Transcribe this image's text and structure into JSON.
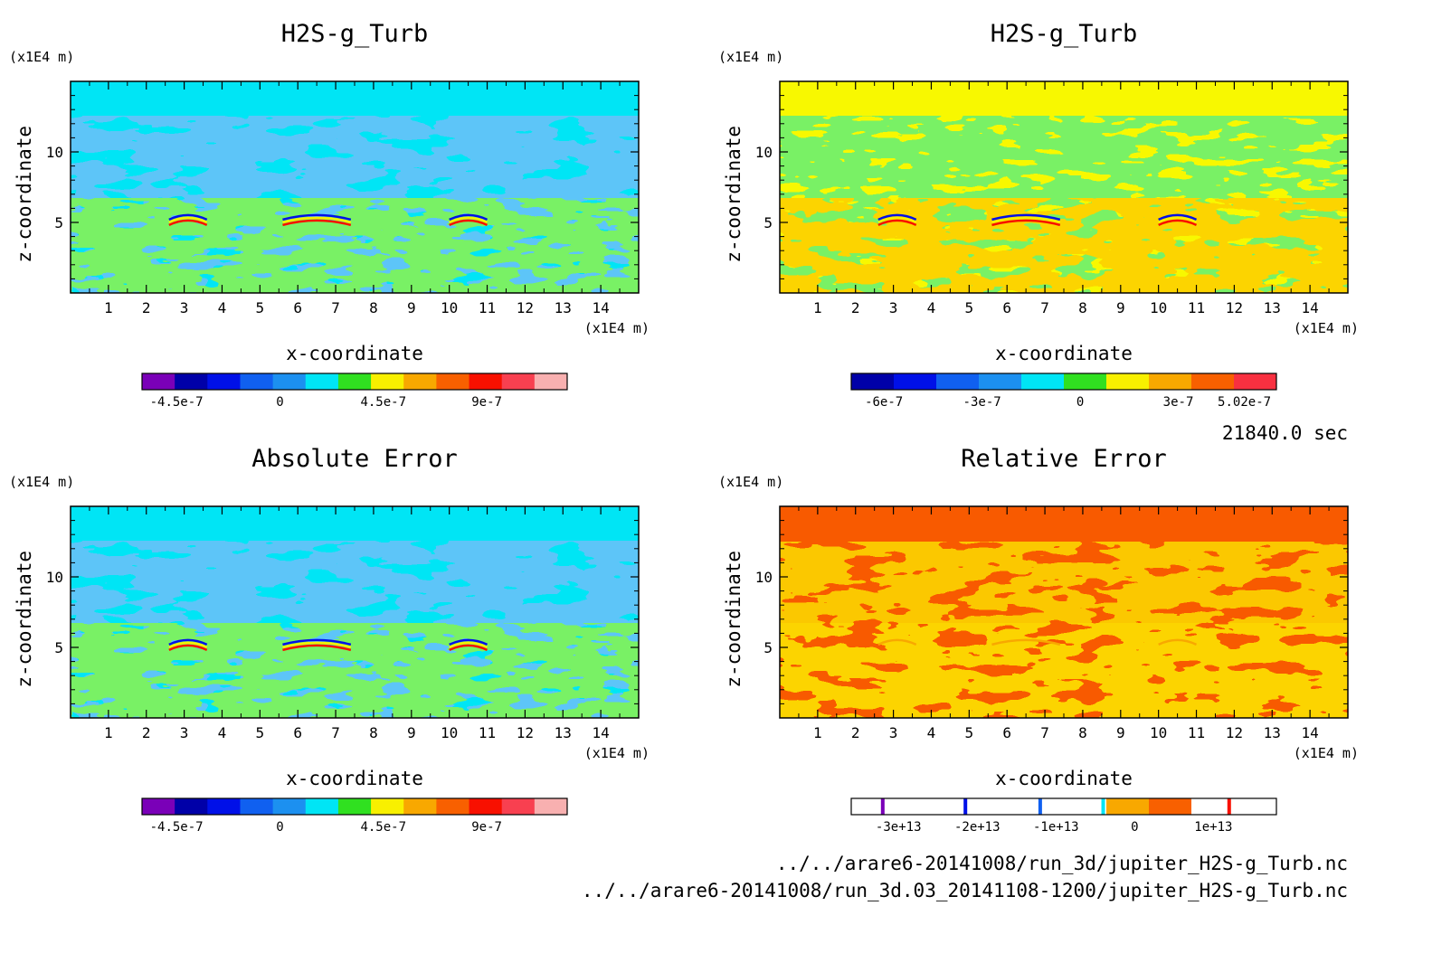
{
  "figure": {
    "time_label": "21840.0 sec",
    "file_paths": [
      "../../arare6-20141008/run_3d/jupiter_H2S-g_Turb.nc",
      "../../arare6-20141008/run_3d.03_20141108-1200/jupiter_H2S-g_Turb.nc"
    ]
  },
  "chart_data": [
    {
      "type": "heatmap",
      "title": "H2S-g_Turb",
      "xlabel": "x-coordinate",
      "ylabel": "z-coordinate",
      "x_unit": "(x1E4 m)",
      "y_unit": "(x1E4 m)",
      "xlim": [
        0,
        15
      ],
      "ylim": [
        0,
        15
      ],
      "x_ticks": [
        1,
        2,
        3,
        4,
        5,
        6,
        7,
        8,
        9,
        10,
        11,
        12,
        13,
        14
      ],
      "y_ticks": [
        5,
        10
      ],
      "background_color": "#00e5f5",
      "colorbar": {
        "colors": [
          "#7a00b8",
          "#0000a8",
          "#0010e8",
          "#1060f0",
          "#1c90f0",
          "#00e5f5",
          "#30e020",
          "#f8f000",
          "#f8a800",
          "#f86000",
          "#f81000",
          "#f84050",
          "#f8b0b0"
        ],
        "tick_labels": [
          "-4.5e-7",
          "0",
          "4.5e-7",
          "9e-7"
        ],
        "tick_values": [
          -4.5e-07,
          0,
          4.5e-07,
          9e-07
        ],
        "range": [
          -6e-07,
          1.25e-06
        ]
      }
    },
    {
      "type": "heatmap",
      "title": "H2S-g_Turb",
      "xlabel": "x-coordinate",
      "ylabel": "z-coordinate",
      "x_unit": "(x1E4 m)",
      "y_unit": "(x1E4 m)",
      "xlim": [
        0,
        15
      ],
      "ylim": [
        0,
        15
      ],
      "x_ticks": [
        1,
        2,
        3,
        4,
        5,
        6,
        7,
        8,
        9,
        10,
        11,
        12,
        13,
        14
      ],
      "y_ticks": [
        5,
        10
      ],
      "background_color": "#f8f800",
      "colorbar": {
        "colors": [
          "#0000a8",
          "#0010e8",
          "#1060f0",
          "#1c90f0",
          "#00e5f5",
          "#30e020",
          "#f8f000",
          "#f8a800",
          "#f86000",
          "#f83040"
        ],
        "tick_labels": [
          "-6e-7",
          "-3e-7",
          "0",
          "3e-7",
          "5.02e-7"
        ],
        "tick_values": [
          -6e-07,
          -3e-07,
          0,
          3e-07,
          5.02e-07
        ],
        "range": [
          -7e-07,
          6e-07
        ]
      }
    },
    {
      "type": "heatmap",
      "title": "Absolute Error",
      "xlabel": "x-coordinate",
      "ylabel": "z-coordinate",
      "x_unit": "(x1E4 m)",
      "y_unit": "(x1E4 m)",
      "xlim": [
        0,
        15
      ],
      "ylim": [
        0,
        15
      ],
      "x_ticks": [
        1,
        2,
        3,
        4,
        5,
        6,
        7,
        8,
        9,
        10,
        11,
        12,
        13,
        14
      ],
      "y_ticks": [
        5,
        10
      ],
      "background_color": "#00e5f5",
      "colorbar": {
        "colors": [
          "#7a00b8",
          "#0000a8",
          "#0010e8",
          "#1060f0",
          "#1c90f0",
          "#00e5f5",
          "#30e020",
          "#f8f000",
          "#f8a800",
          "#f86000",
          "#f81000",
          "#f84050",
          "#f8b0b0"
        ],
        "tick_labels": [
          "-4.5e-7",
          "0",
          "4.5e-7",
          "9e-7"
        ],
        "tick_values": [
          -4.5e-07,
          0,
          4.5e-07,
          9e-07
        ],
        "range": [
          -6e-07,
          1.25e-06
        ]
      }
    },
    {
      "type": "heatmap",
      "title": "Relative Error",
      "xlabel": "x-coordinate",
      "ylabel": "z-coordinate",
      "x_unit": "(x1E4 m)",
      "y_unit": "(x1E4 m)",
      "xlim": [
        0,
        15
      ],
      "ylim": [
        0,
        15
      ],
      "x_ticks": [
        1,
        2,
        3,
        4,
        5,
        6,
        7,
        8,
        9,
        10,
        11,
        12,
        13,
        14
      ],
      "y_ticks": [
        5,
        10
      ],
      "background_color": "#f85a00",
      "colorbar": {
        "colors": [
          "#ffffff",
          "#ffffff",
          "#ffffff",
          "#ffffff",
          "#ffffff",
          "#ffffff",
          "#f8a800",
          "#f86000",
          "#ffffff",
          "#ffffff"
        ],
        "tick_labels": [
          "-3e+13",
          "-2e+13",
          "-1e+13",
          "0",
          "1e+13"
        ],
        "tick_values": [
          -30000000000000.0,
          -20000000000000.0,
          -10000000000000.0,
          0,
          10000000000000.0
        ],
        "range": [
          -36000000000000.0,
          18000000000000.0
        ],
        "lines": [
          {
            "value": -32000000000000.0,
            "color": "#7a00b8"
          },
          {
            "value": -21500000000000.0,
            "color": "#0010e8"
          },
          {
            "value": -12000000000000.0,
            "color": "#1060f0"
          },
          {
            "value": -4000000000000.0,
            "color": "#00e5f5"
          },
          {
            "value": 12000000000000.0,
            "color": "#f81000"
          }
        ]
      }
    }
  ]
}
